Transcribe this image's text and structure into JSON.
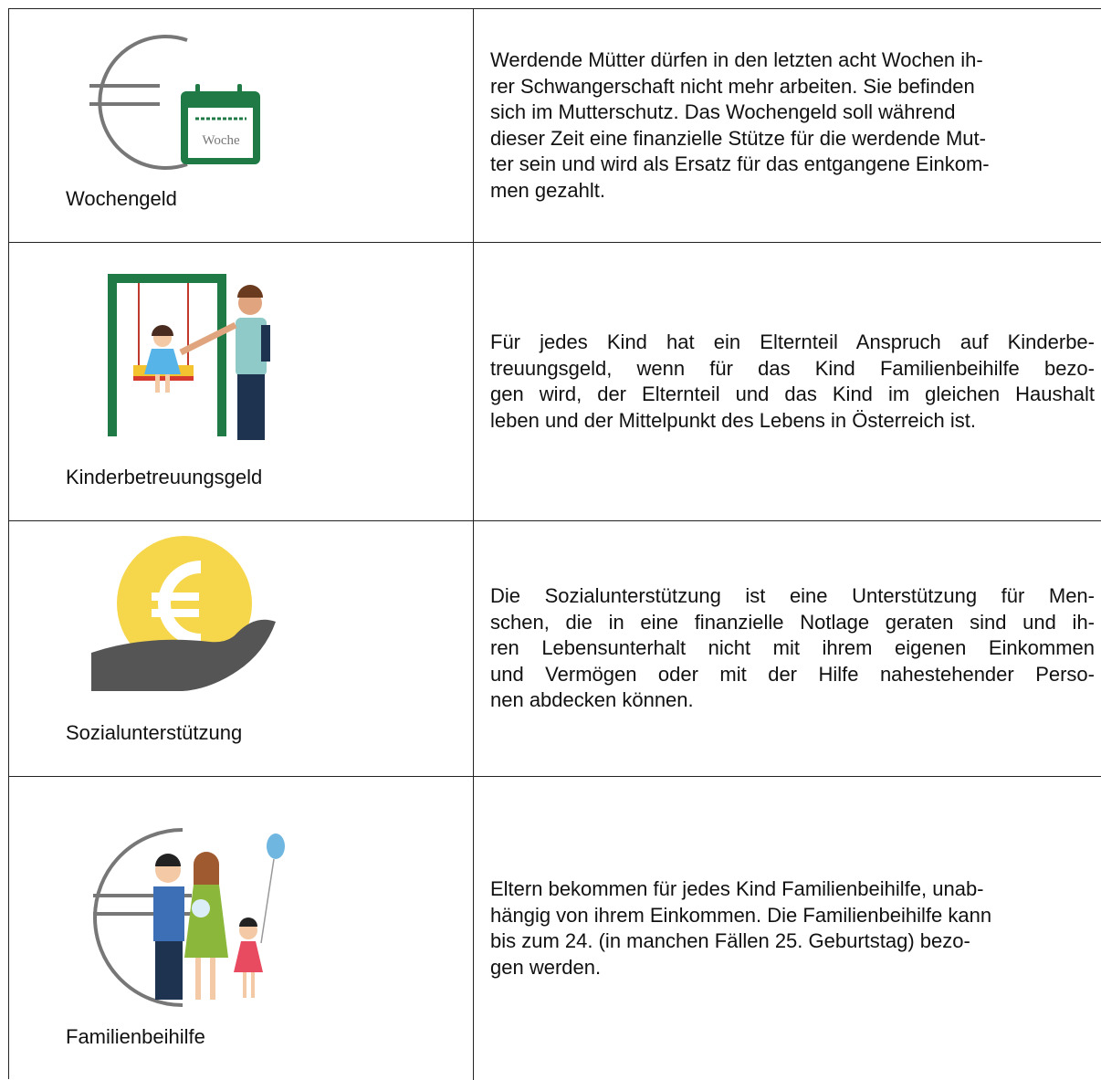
{
  "rows": [
    {
      "label": "Wochengeld",
      "icon_text": "Woche",
      "lines": [
        "Werdende Mütter dürfen in den letzten acht Wochen ih-",
        "rer Schwangerschaft nicht mehr arbeiten. Sie befinden",
        "sich im Mutterschutz. Das Wochengeld soll während",
        "dieser Zeit eine finanzielle Stütze für die werdende Mut-",
        "ter sein und wird als Ersatz für das entgangene Einkom-",
        "men gezahlt."
      ]
    },
    {
      "label": "Kinderbetreuungsgeld",
      "lines": [
        "Für jedes Kind hat ein Elternteil Anspruch auf Kinderbe-",
        "treuungsgeld, wenn für das Kind Familienbeihilfe bezo-",
        "gen wird, der Elternteil und das Kind im gleichen Haushalt",
        "leben und der Mittelpunkt des Lebens in Österreich ist."
      ]
    },
    {
      "label": "Sozialunterstützung",
      "lines": [
        "Die Sozialunterstützung ist eine Unterstützung für Men-",
        "schen, die in eine finanzielle Notlage geraten sind und ih-",
        "ren Lebensunterhalt nicht mit ihrem eigenen Einkommen",
        "und Vermögen oder mit der Hilfe nahestehender Perso-",
        "nen abdecken können."
      ]
    },
    {
      "label": "Familienbeihilfe",
      "lines": [
        "Eltern bekommen für jedes Kind Familienbeihilfe, unab-",
        "hängig von ihrem Einkommen. Die Familienbeihilfe kann",
        "bis zum 24. (in manchen Fällen 25. Geburtstag) bezo-",
        "gen werden."
      ]
    }
  ]
}
